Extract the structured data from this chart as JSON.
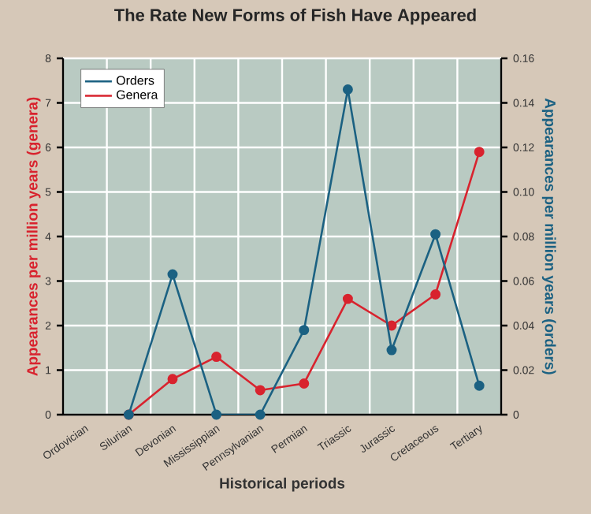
{
  "chart_data": {
    "type": "line",
    "title": "The Rate New Forms of Fish Have Appeared",
    "xlabel": "Historical periods",
    "ylabel": "Appearances per million years (genera)",
    "y2label": "Appearances per million years (orders)",
    "categories": [
      "Ordovician",
      "Silurian",
      "Devonian",
      "Mississippian",
      "Pennsylvanian",
      "Permian",
      "Triassic",
      "Jurassic",
      "Cretaceous",
      "Tertiary"
    ],
    "series": [
      {
        "name": "Orders",
        "color": "#1b6182",
        "axis": "y2",
        "values": [
          null,
          0,
          0.063,
          0,
          0,
          0.038,
          0.146,
          0.029,
          0.081,
          0.013
        ]
      },
      {
        "name": "Genera",
        "color": "#d8232e",
        "values": [
          null,
          0,
          0.8,
          1.3,
          0.55,
          0.7,
          2.6,
          2.0,
          2.7,
          5.9
        ]
      }
    ],
    "ylim": [
      0,
      8
    ],
    "yticks": [
      0,
      1,
      2,
      3,
      4,
      5,
      6,
      7,
      8
    ],
    "y2lim": [
      0,
      0.16
    ],
    "y2ticks": [
      0,
      0.02,
      0.04,
      0.06,
      0.08,
      {
        "value": 0.1,
        "label": "0.10"
      },
      0.12,
      0.14,
      0.16
    ],
    "grid": true,
    "legend": "top left",
    "marker": "circle",
    "line_style": "solid"
  }
}
